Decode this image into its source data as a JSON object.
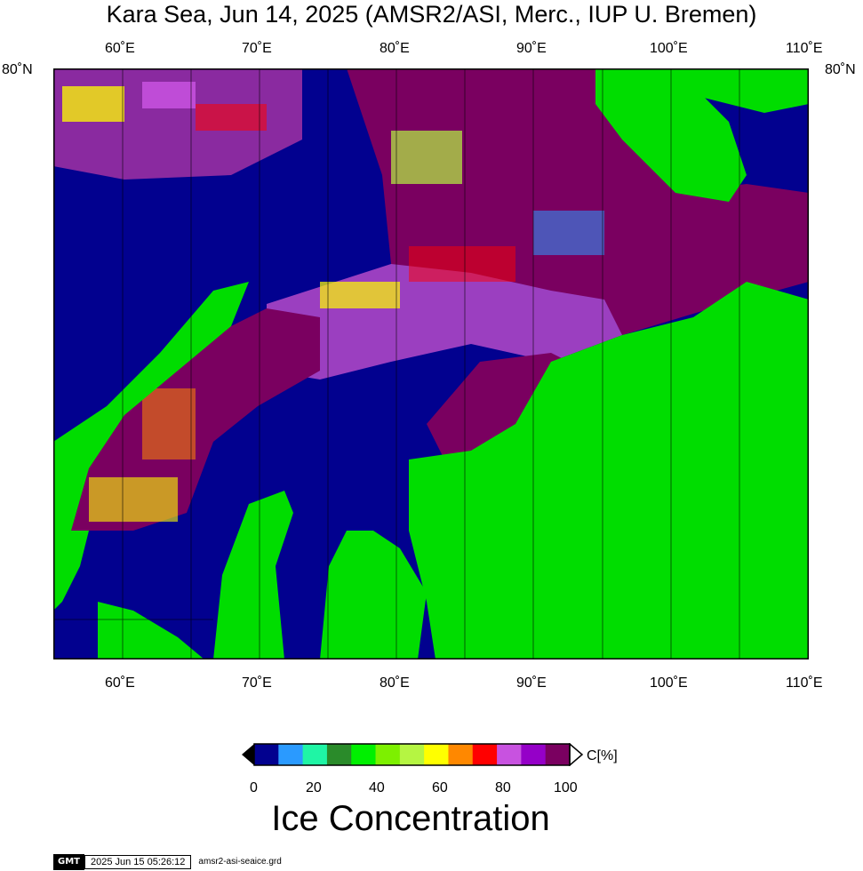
{
  "title": "Kara Sea, Jun 14, 2025 (AMSR2/ASI, Merc., IUP U. Bremen)",
  "axes": {
    "lon_ticks": [
      "60˚E",
      "70˚E",
      "80˚E",
      "90˚E",
      "100˚E",
      "110˚E"
    ],
    "lat_tick": "80˚N"
  },
  "colorbar": {
    "unit_label": "C[%]",
    "tick_labels": [
      "0",
      "20",
      "40",
      "60",
      "80",
      "100"
    ],
    "title": "Ice Concentration",
    "colors": [
      "#02018f",
      "#2a9aff",
      "#1ff5a5",
      "#2a8b2a",
      "#00f000",
      "#7df000",
      "#b5f542",
      "#ffff00",
      "#ff8800",
      "#ff0000",
      "#c852e0",
      "#9500c8",
      "#7a0060"
    ]
  },
  "palette": {
    "ocean": "#02018f",
    "land": "#00dd00",
    "high_ice": "#7a0060"
  },
  "footer": {
    "logo": "GMT",
    "timestamp": "2025 Jun 15 05:26:12",
    "filename": "amsr2-asi-seaice.grd"
  }
}
